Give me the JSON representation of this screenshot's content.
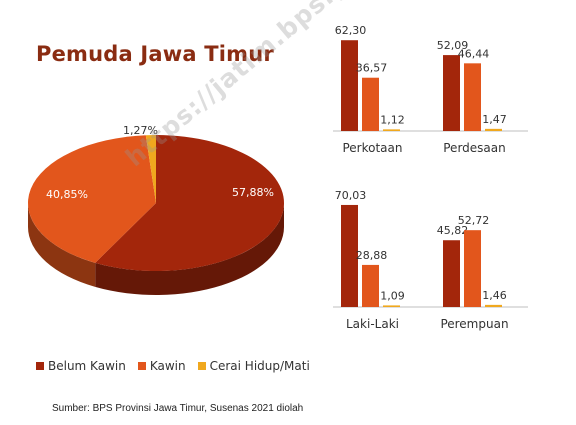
{
  "title": "Pemuda Jawa Timur",
  "watermark": "https://jatim.bps.go.id",
  "source": "Sumber: BPS Provinsi Jawa Timur, Susenas 2021 diolah",
  "colors": {
    "belum_kawin": "#a3260b",
    "kawin": "#e2561c",
    "cerai": "#f0a81e"
  },
  "legend": [
    "Belum Kawin",
    "Kawin",
    "Cerai Hidup/Mati"
  ],
  "chart_data": [
    {
      "type": "pie",
      "title": "Pemuda Jawa Timur",
      "slices": [
        {
          "name": "Belum Kawin",
          "value": 57.88,
          "label": "57,88%"
        },
        {
          "name": "Kawin",
          "value": 40.85,
          "label": "40,85%"
        },
        {
          "name": "Cerai Hidup/Mati",
          "value": 1.27,
          "label": "1,27%"
        }
      ]
    },
    {
      "type": "bar",
      "categories": [
        "Perkotaan",
        "Perdesaan"
      ],
      "series": [
        {
          "name": "Belum Kawin",
          "values": [
            62.3,
            52.09
          ],
          "labels": [
            "62,30",
            "52,09"
          ]
        },
        {
          "name": "Kawin",
          "values": [
            36.57,
            46.44
          ],
          "labels": [
            "36,57",
            "46,44"
          ]
        },
        {
          "name": "Cerai Hidup/Mati",
          "values": [
            1.12,
            1.47
          ],
          "labels": [
            "1,12",
            "1,47"
          ]
        }
      ],
      "ylim": [
        0,
        75
      ]
    },
    {
      "type": "bar",
      "categories": [
        "Laki-Laki",
        "Perempuan"
      ],
      "series": [
        {
          "name": "Belum Kawin",
          "values": [
            70.03,
            45.82
          ],
          "labels": [
            "70,03",
            "45,82"
          ]
        },
        {
          "name": "Kawin",
          "values": [
            28.88,
            52.72
          ],
          "labels": [
            "28,88",
            "52,72"
          ]
        },
        {
          "name": "Cerai Hidup/Mati",
          "values": [
            1.09,
            1.46
          ],
          "labels": [
            "1,09",
            "1,46"
          ]
        }
      ],
      "ylim": [
        0,
        75
      ]
    }
  ]
}
